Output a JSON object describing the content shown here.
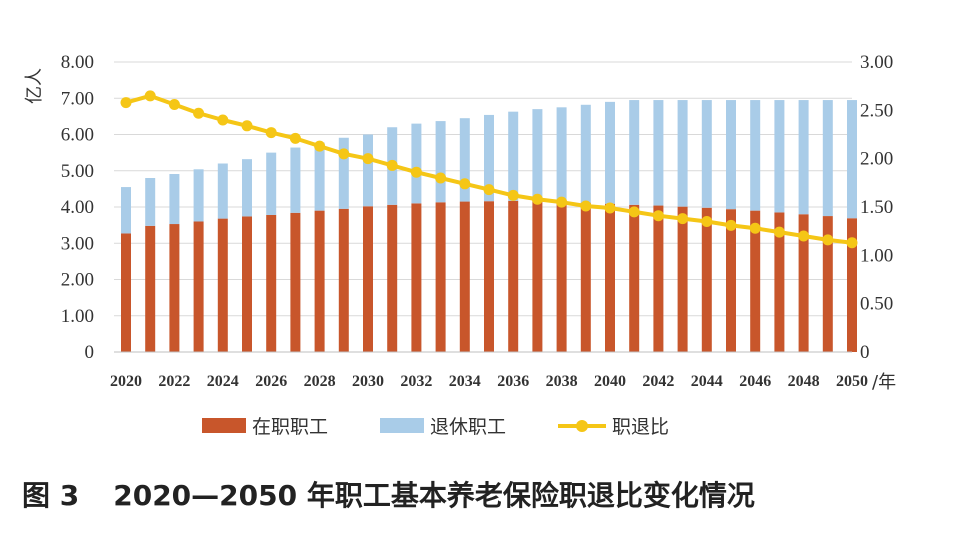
{
  "chart_data": {
    "type": "bar+line",
    "caption_label": "图 3",
    "title": "2020—2050 年职工基本养老保险职退比变化情况",
    "left_unit": "亿人",
    "x_unit": "/年",
    "categories": [
      "2020",
      "2021",
      "2022",
      "2023",
      "2024",
      "2025",
      "2026",
      "2027",
      "2028",
      "2029",
      "2030",
      "2031",
      "2032",
      "2033",
      "2034",
      "2035",
      "2036",
      "2037",
      "2038",
      "2039",
      "2040",
      "2041",
      "2042",
      "2043",
      "2044",
      "2045",
      "2046",
      "2047",
      "2048",
      "2049",
      "2050"
    ],
    "x_tick_labels": [
      "2020",
      "2022",
      "2024",
      "2026",
      "2028",
      "2030",
      "2032",
      "2034",
      "2036",
      "2038",
      "2040",
      "2042",
      "2044",
      "2046",
      "2048",
      "2050"
    ],
    "left_axis": {
      "range": [
        0,
        8
      ],
      "ticks": [
        "0",
        "1.00",
        "2.00",
        "3.00",
        "4.00",
        "5.00",
        "6.00",
        "7.00",
        "8.00"
      ]
    },
    "right_axis": {
      "range": [
        0,
        3
      ],
      "ticks": [
        "0",
        "0.50",
        "1.00",
        "1.50",
        "2.00",
        "2.50",
        "3.00"
      ]
    },
    "series": [
      {
        "name": "在职职工",
        "type": "stacked-bar",
        "axis": "left",
        "color": "#c8562b",
        "values": [
          3.27,
          3.48,
          3.53,
          3.6,
          3.68,
          3.74,
          3.78,
          3.84,
          3.9,
          3.95,
          4.02,
          4.06,
          4.1,
          4.13,
          4.15,
          4.16,
          4.17,
          4.17,
          4.15,
          4.12,
          4.09,
          4.06,
          4.04,
          4.01,
          3.98,
          3.94,
          3.9,
          3.85,
          3.8,
          3.75,
          3.69
        ]
      },
      {
        "name": "退休职工",
        "type": "stacked-bar",
        "axis": "left",
        "color": "#a9cce8",
        "values": [
          1.28,
          1.32,
          1.38,
          1.44,
          1.52,
          1.58,
          1.72,
          1.8,
          1.88,
          1.96,
          1.98,
          2.14,
          2.2,
          2.24,
          2.3,
          2.38,
          2.46,
          2.53,
          2.6,
          2.7,
          2.81,
          2.89,
          2.91,
          2.94,
          2.97,
          3.01,
          3.05,
          3.1,
          3.15,
          3.2,
          3.26
        ]
      },
      {
        "name": "职退比",
        "type": "line",
        "axis": "right",
        "color": "#f5c616",
        "values": [
          2.58,
          2.65,
          2.56,
          2.47,
          2.4,
          2.34,
          2.27,
          2.21,
          2.13,
          2.05,
          2.0,
          1.93,
          1.86,
          1.8,
          1.74,
          1.68,
          1.62,
          1.58,
          1.55,
          1.51,
          1.49,
          1.45,
          1.41,
          1.38,
          1.35,
          1.31,
          1.28,
          1.24,
          1.2,
          1.16,
          1.13
        ]
      }
    ],
    "grid": true,
    "legend_position": "bottom-center"
  }
}
